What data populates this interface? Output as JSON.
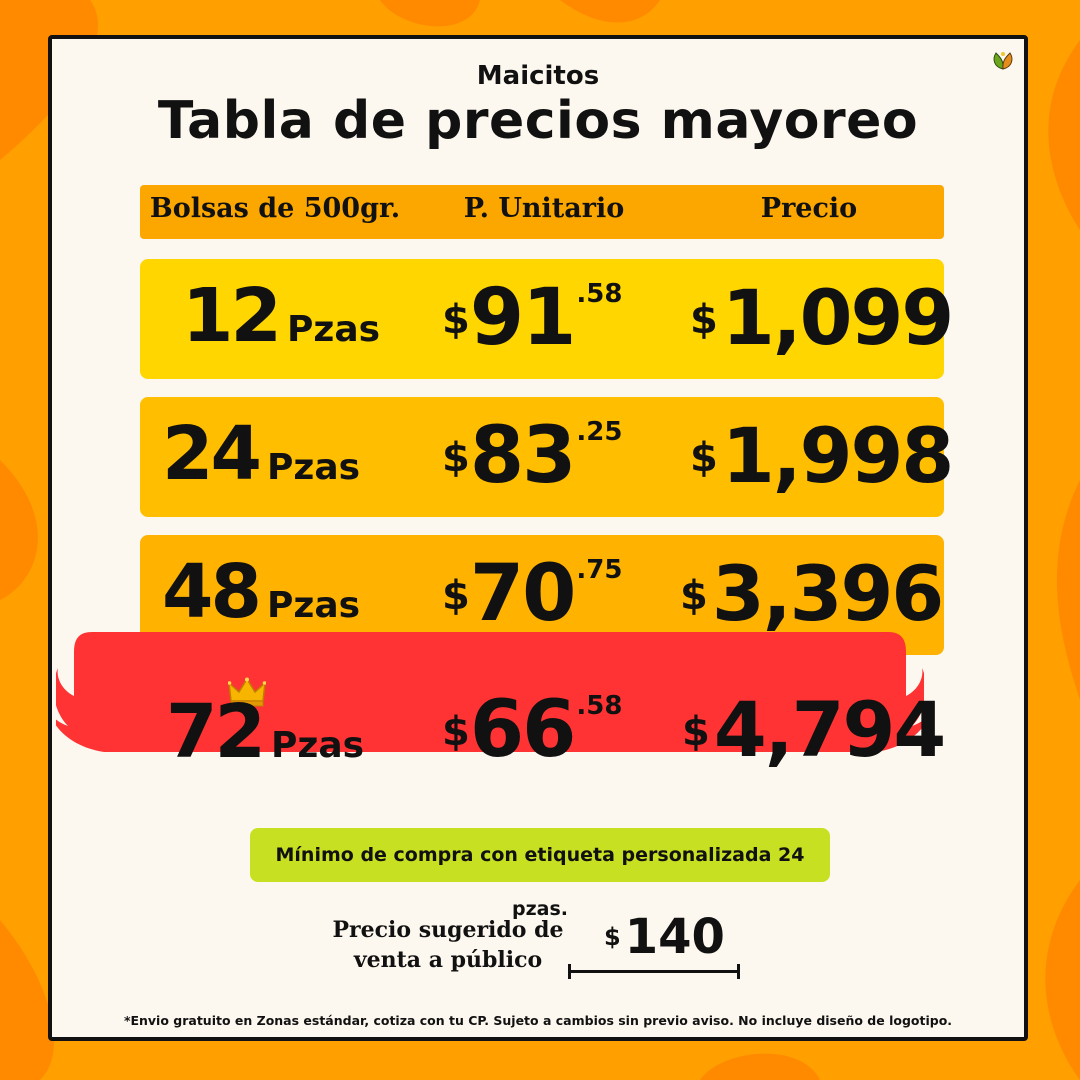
{
  "brand": "Maicitos",
  "title": "Tabla de precios mayoreo",
  "header": {
    "col1": "Bolsas de 500gr.",
    "col2": "P. Unitario",
    "col3": "Precio"
  },
  "rows": [
    {
      "qty": "12",
      "unit_label": "Pzas",
      "currency": "$",
      "unit_int": "91",
      "unit_cents": ".58",
      "total": "1,099",
      "color": "#ffd600"
    },
    {
      "qty": "24",
      "unit_label": "Pzas",
      "currency": "$",
      "unit_int": "83",
      "unit_cents": ".25",
      "total": "1,998",
      "color": "#ffbe00"
    },
    {
      "qty": "48",
      "unit_label": "Pzas",
      "currency": "$",
      "unit_int": "70",
      "unit_cents": ".75",
      "total": "3,396",
      "color": "#ffb300"
    },
    {
      "qty": "72",
      "unit_label": "Pzas",
      "currency": "$",
      "unit_int": "66",
      "unit_cents": ".58",
      "total": "4,794",
      "color": "#ff3333"
    }
  ],
  "note": "Mínimo de compra con etiqueta personalizada 24 pzas.",
  "suggested": {
    "label_line1": "Precio sugerido de",
    "label_line2": "venta a público",
    "currency": "$",
    "price": "140"
  },
  "footnote": "*Envio gratuito en Zonas estándar, cotiza con tu CP. Sujeto a cambios sin previo aviso. No incluye diseño de logotipo.",
  "colors": {
    "background": "#ff9f00",
    "card": "#fdf8ef",
    "header_bar": "#fca600",
    "note_bg": "#c8e022",
    "highlight": "#ff3333"
  },
  "icons": [
    "leaf-logo-icon",
    "crown-icon"
  ]
}
